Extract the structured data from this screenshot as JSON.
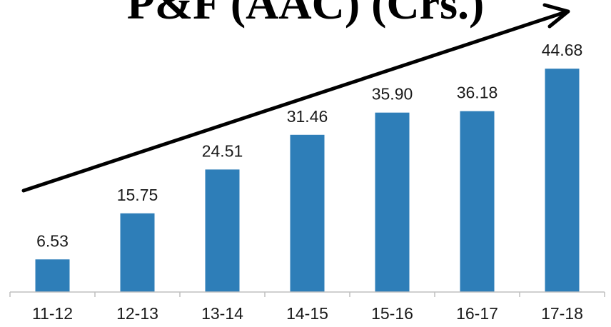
{
  "chart_data": {
    "type": "bar",
    "title": "P&F (AAC) (Crs.)",
    "categories": [
      "11-12",
      "12-13",
      "13-14",
      "14-15",
      "15-16",
      "16-17",
      "17-18"
    ],
    "values": [
      6.53,
      15.75,
      24.51,
      31.46,
      35.9,
      36.18,
      44.68
    ],
    "data_labels": [
      "6.53",
      "15.75",
      "24.51",
      "31.46",
      "35.90",
      "36.18",
      "44.68"
    ],
    "xlabel": "",
    "ylabel": "",
    "ylim": [
      0,
      50
    ],
    "grid": false,
    "legend": "none",
    "bar_color": "#2e7eb8",
    "trend_arrow": true
  }
}
